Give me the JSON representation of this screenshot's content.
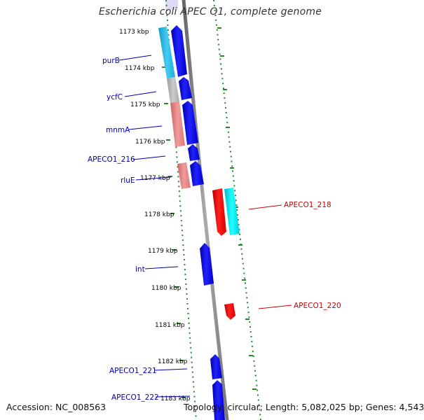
{
  "title": "Escherichia coli APEC O1, complete genome",
  "footer": {
    "accession": "Accession: NC_008563",
    "topology": "Topology: circular; Length: 5,082,025 bp; Genes: 4,543"
  },
  "ticks": [
    "1173 kbp",
    "1174 kbp",
    "1175 kbp",
    "1176 kbp",
    "1177 kbp",
    "1178 kbp",
    "1179 kbp",
    "1180 kbp",
    "1181 kbp",
    "1182 kbp",
    "1183 kbp"
  ],
  "genes": {
    "purB": "purB",
    "ycfC": "ycfC",
    "mnmA": "mnmA",
    "APECO1_216": "APECO1_216",
    "rluE": "rluE",
    "int": "int",
    "APECO1_221": "APECO1_221",
    "APECO1_222": "APECO1_222",
    "APECO1_218": "APECO1_218",
    "APECO1_220": "APECO1_220"
  },
  "colors": {
    "forward_gene": "#0000ee",
    "reverse_gene": "#ff0000",
    "forward_label": "#0000aa",
    "reverse_label": "#cc0000",
    "cog_cyan": "#33ccee",
    "cog_grey": "#bbbbbb",
    "cog_salmon": "#ee8888",
    "cog_aqua": "#00eeee",
    "backbone": "#888888",
    "dotted_track": "#228822"
  }
}
